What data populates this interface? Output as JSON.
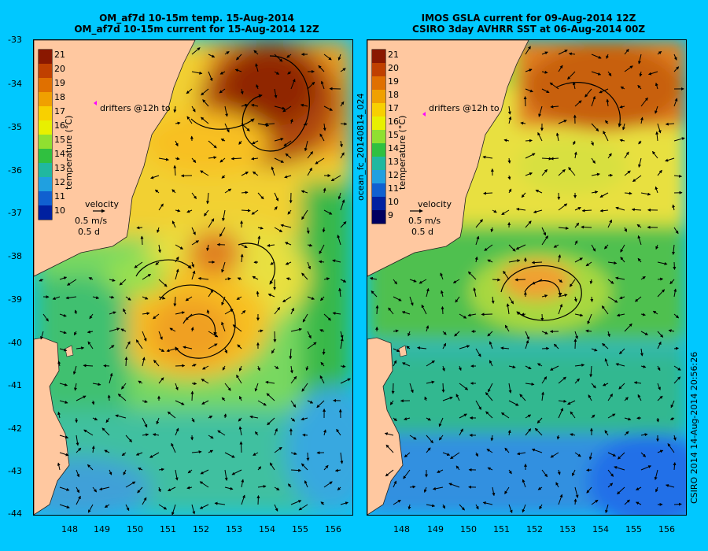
{
  "titles": {
    "left_line1": "OM_af7d 10-15m temp. 15-Aug-2014",
    "left_line2": "OM_af7d 10-15m current for 15-Aug-2014 12Z",
    "right_line1": "IMOS GSLA current for 09-Aug-2014 12Z",
    "right_line2": "CSIRO 3day AVHRR SST at 06-Aug-2014 00Z"
  },
  "axes": {
    "lat_labels": [
      "-33",
      "-34",
      "-35",
      "-36",
      "-37",
      "-38",
      "-39",
      "-40",
      "-41",
      "-42",
      "-43",
      "-44"
    ],
    "lon_labels": [
      "148",
      "149",
      "150",
      "151",
      "152",
      "153",
      "154",
      "155",
      "156"
    ]
  },
  "colorbar": {
    "left_labels": [
      "21",
      "20",
      "19",
      "18",
      "17",
      "16",
      "15",
      "14",
      "13",
      "12",
      "11",
      "10"
    ],
    "right_labels": [
      "21",
      "20",
      "19",
      "18",
      "17",
      "16",
      "15",
      "14",
      "13",
      "12",
      "11",
      "10",
      "9"
    ],
    "title": "temperature (°C)"
  },
  "legend": {
    "drifters": "drifters @12h to",
    "velocity": "velocity",
    "speed": "0.5 m/s",
    "duration": "0.5 d"
  },
  "side_text": {
    "run_id": "ocean_fc_20140814_024",
    "stamp": "CSIRO 2014   14-Aug-2014 20:56:26"
  },
  "colors": {
    "background": "#00c8ff",
    "land": "#ffc8a0",
    "marker": "#ff00ff"
  },
  "map_data": {
    "lon_range": [
      147.1,
      156.6
    ],
    "lat_range": [
      -44,
      -33
    ],
    "left_features": [
      {
        "type": "warm_eddy",
        "lon": 153.9,
        "lat": -34.6
      },
      {
        "type": "warm_eddy",
        "lon": 151.7,
        "lat": -39.6
      },
      {
        "type": "warm_blob",
        "lon": 151.2,
        "lat": -38.2
      }
    ],
    "right_features": [
      {
        "type": "warm_core",
        "lon": 154.2,
        "lat": -34.3
      },
      {
        "type": "eddy",
        "lon": 152.4,
        "lat": -38.8
      }
    ]
  }
}
